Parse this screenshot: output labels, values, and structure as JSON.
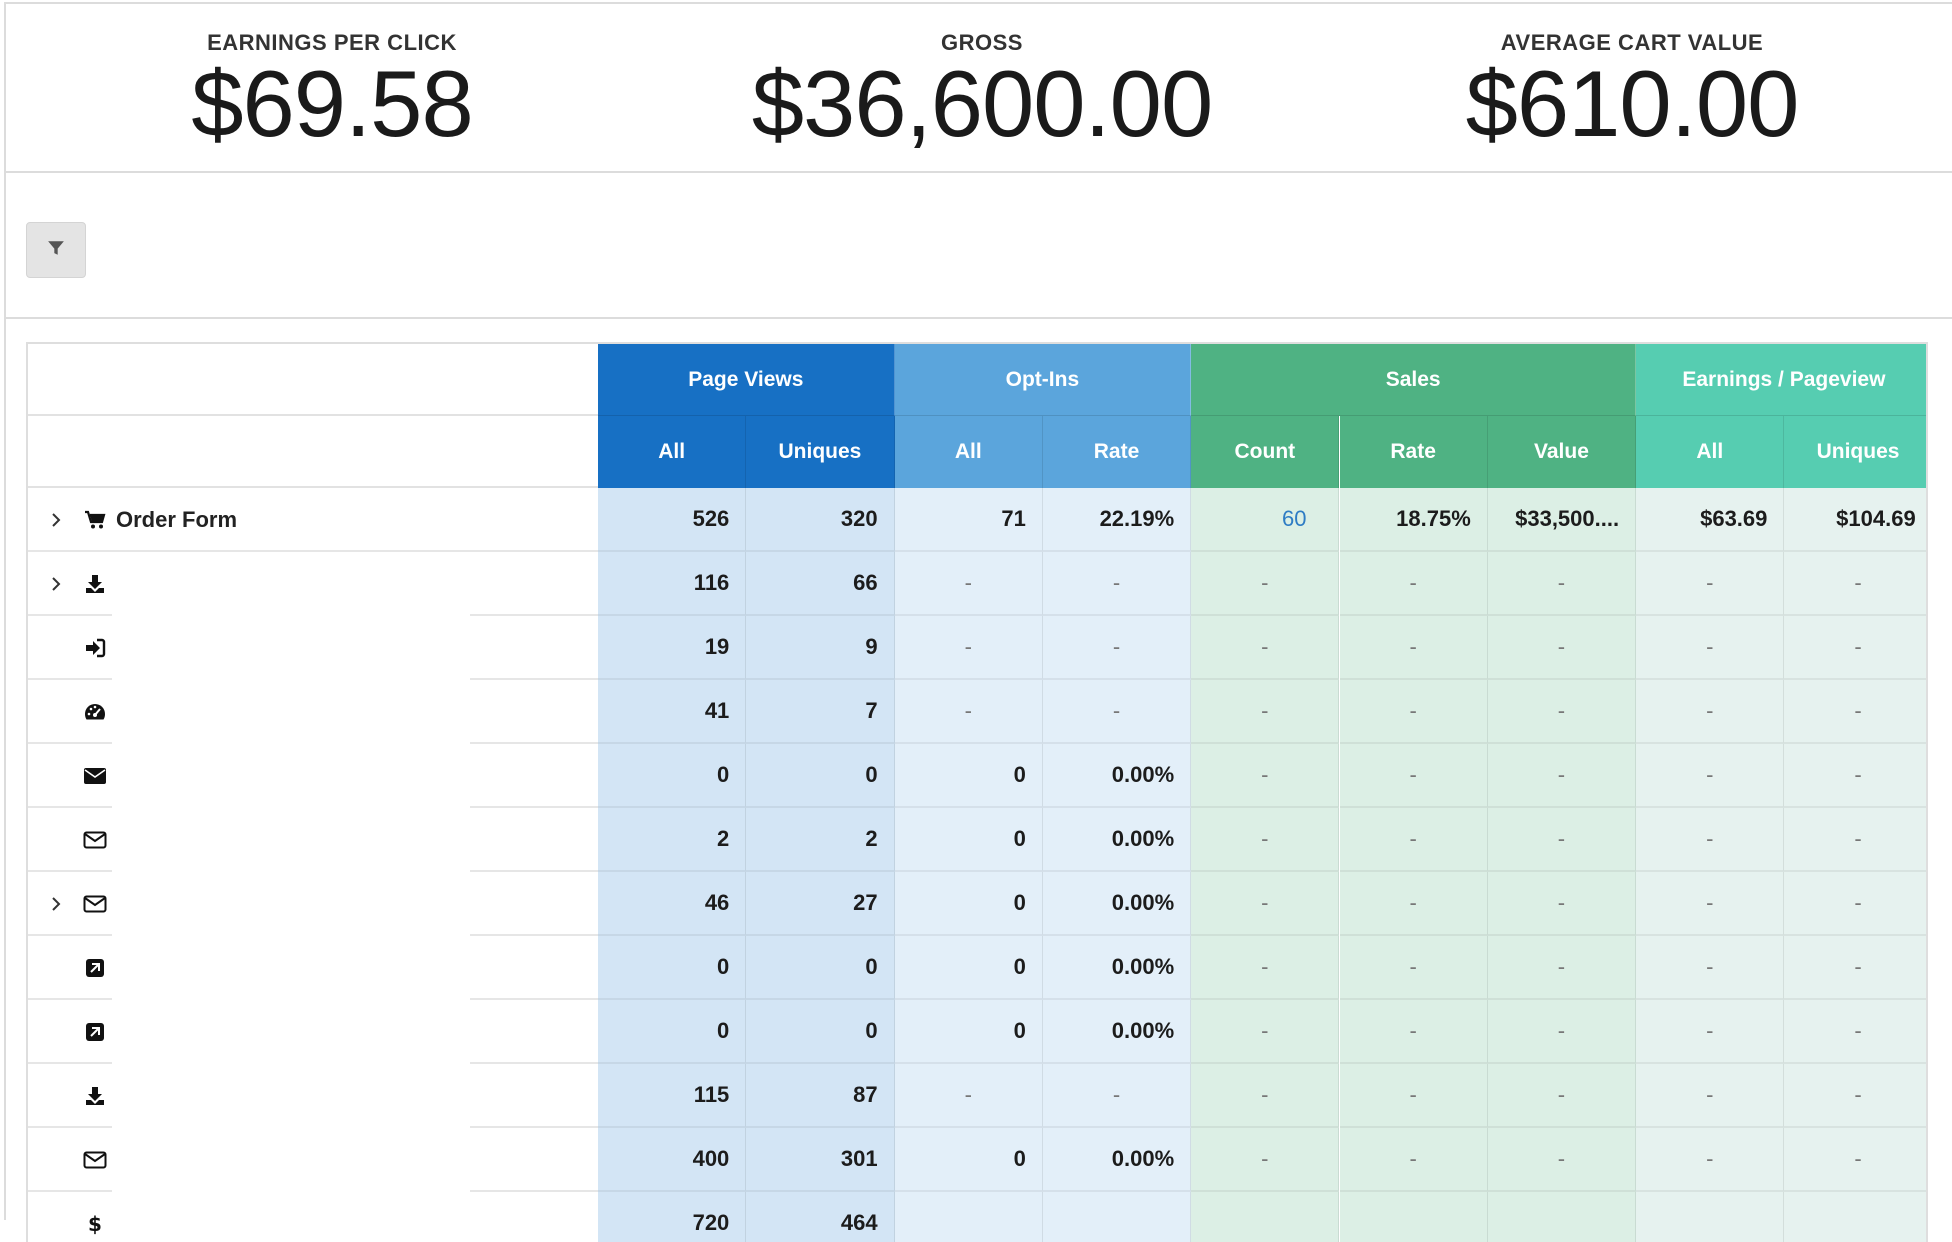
{
  "metrics": [
    {
      "label": "EARNINGS PER CLICK",
      "value": "$69.58"
    },
    {
      "label": "GROSS",
      "value": "$36,600.00"
    },
    {
      "label": "AVERAGE CART VALUE",
      "value": "$610.00"
    }
  ],
  "table": {
    "groups": [
      {
        "label": "Page Views",
        "color": "#1770c4",
        "sub_color": "#1770c4",
        "body_color": "#d3e5f5"
      },
      {
        "label": "Opt-Ins",
        "color": "#5ba5dc",
        "sub_color": "#5ba5dc",
        "body_color": "#e3eff9"
      },
      {
        "label": "Sales",
        "color": "#4fb283",
        "sub_color": "#4fb283",
        "body_color": "#dcefe5"
      },
      {
        "label": "Earnings / Pageview",
        "color": "#56cdb1",
        "sub_color": "#56cdb1",
        "body_color": "#e6f2ef"
      }
    ],
    "subheaders": [
      "All",
      "Uniques",
      "All",
      "Rate",
      "Count",
      "Rate",
      "Value",
      "All",
      "Uniques"
    ],
    "rows": [
      {
        "name": "Order Form",
        "icon": "shopping-cart-icon",
        "expandable": true,
        "cells": [
          "526",
          "320",
          "71",
          "22.19%",
          "60",
          "18.75%",
          "$33,500....",
          "$63.69",
          "$104.69"
        ]
      },
      {
        "name": "",
        "icon": "download-icon",
        "expandable": true,
        "cells": [
          "116",
          "66",
          "-",
          "-",
          "-",
          "-",
          "-",
          "-",
          "-"
        ]
      },
      {
        "name": "",
        "icon": "sign-in-icon",
        "expandable": false,
        "cells": [
          "19",
          "9",
          "-",
          "-",
          "-",
          "-",
          "-",
          "-",
          "-"
        ]
      },
      {
        "name": "",
        "icon": "dashboard-icon",
        "expandable": false,
        "cells": [
          "41",
          "7",
          "-",
          "-",
          "-",
          "-",
          "-",
          "-",
          "-"
        ]
      },
      {
        "name": "",
        "icon": "envelope-solid-icon",
        "expandable": false,
        "cells": [
          "0",
          "0",
          "0",
          "0.00%",
          "-",
          "-",
          "-",
          "-",
          "-"
        ]
      },
      {
        "name": "",
        "icon": "envelope-outline-icon",
        "expandable": false,
        "cells": [
          "2",
          "2",
          "0",
          "0.00%",
          "-",
          "-",
          "-",
          "-",
          "-"
        ]
      },
      {
        "name": "",
        "icon": "envelope-outline-icon",
        "expandable": true,
        "cells": [
          "46",
          "27",
          "0",
          "0.00%",
          "-",
          "-",
          "-",
          "-",
          "-"
        ]
      },
      {
        "name": "",
        "icon": "external-link-icon",
        "expandable": false,
        "cells": [
          "0",
          "0",
          "0",
          "0.00%",
          "-",
          "-",
          "-",
          "-",
          "-"
        ]
      },
      {
        "name": "",
        "icon": "external-link-icon",
        "expandable": false,
        "cells": [
          "0",
          "0",
          "0",
          "0.00%",
          "-",
          "-",
          "-",
          "-",
          "-"
        ]
      },
      {
        "name": "",
        "icon": "download-icon",
        "expandable": false,
        "cells": [
          "115",
          "87",
          "-",
          "-",
          "-",
          "-",
          "-",
          "-",
          "-"
        ]
      },
      {
        "name": "",
        "icon": "envelope-outline-icon",
        "expandable": false,
        "cells": [
          "400",
          "301",
          "0",
          "0.00%",
          "-",
          "-",
          "-",
          "-",
          "-"
        ]
      },
      {
        "name": "",
        "icon": "dollar-icon",
        "expandable": false,
        "cells": [
          "720",
          "464",
          "",
          "",
          "",
          "",
          "",
          "",
          ""
        ]
      }
    ]
  }
}
